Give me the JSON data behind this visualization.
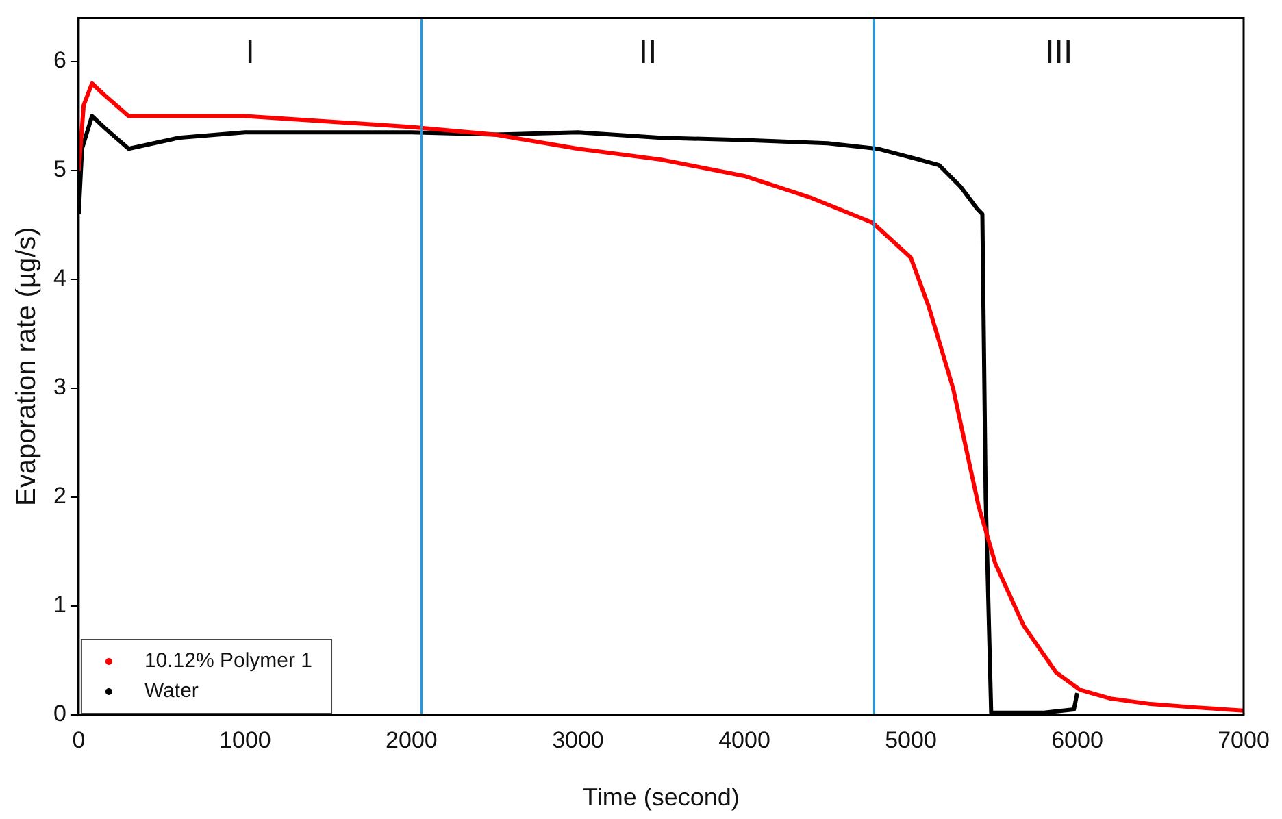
{
  "chart_data": {
    "type": "line",
    "xlabel": "Time (second)",
    "ylabel": "Evaporation rate (µg/s)",
    "xlim": [
      0,
      7000
    ],
    "xticks": [
      0,
      1000,
      2000,
      3000,
      4000,
      5000,
      6000,
      7000
    ],
    "ylim": [
      0,
      6.4
    ],
    "yticks": [
      0,
      1,
      2,
      3,
      4,
      5,
      6
    ],
    "grid": false,
    "legend": "bottom left",
    "marker": "none",
    "line_style": "solid",
    "series": [
      {
        "name": "10.12% Polymer 1",
        "color": "#ff0000",
        "x": [
          0,
          30,
          80,
          150,
          300,
          500,
          1000,
          1500,
          2000,
          2500,
          3000,
          3500,
          4000,
          4400,
          4771,
          5000,
          5110,
          5254,
          5407,
          5508,
          5678,
          5873,
          6017,
          6200,
          6441,
          6700,
          7000
        ],
        "values": [
          5.0,
          5.6,
          5.8,
          5.7,
          5.5,
          5.5,
          5.5,
          5.45,
          5.4,
          5.33,
          5.2,
          5.1,
          4.95,
          4.75,
          4.52,
          4.2,
          3.74,
          3.0,
          1.92,
          1.39,
          0.82,
          0.39,
          0.23,
          0.15,
          0.1,
          0.07,
          0.04
        ]
      },
      {
        "name": "Water",
        "color": "#000000",
        "x": [
          0,
          20,
          80,
          150,
          300,
          600,
          1000,
          1500,
          2000,
          2500,
          3000,
          3500,
          4000,
          4500,
          4800,
          5050,
          5170,
          5300,
          5398,
          5430,
          5450,
          5483,
          5600,
          5800,
          5980,
          6000
        ],
        "values": [
          4.6,
          5.2,
          5.5,
          5.4,
          5.2,
          5.3,
          5.35,
          5.35,
          5.35,
          5.33,
          5.35,
          5.3,
          5.28,
          5.25,
          5.2,
          5.1,
          5.05,
          4.85,
          4.65,
          4.6,
          2.0,
          0.02,
          0.02,
          0.02,
          0.05,
          0.2
        ]
      }
    ],
    "ref_lines": [
      {
        "axis": "x",
        "value": 2060,
        "color": "#1e9be0"
      },
      {
        "axis": "x",
        "value": 4780,
        "color": "#1e9be0"
      }
    ],
    "annotations": [
      "I",
      "II",
      "III"
    ]
  }
}
